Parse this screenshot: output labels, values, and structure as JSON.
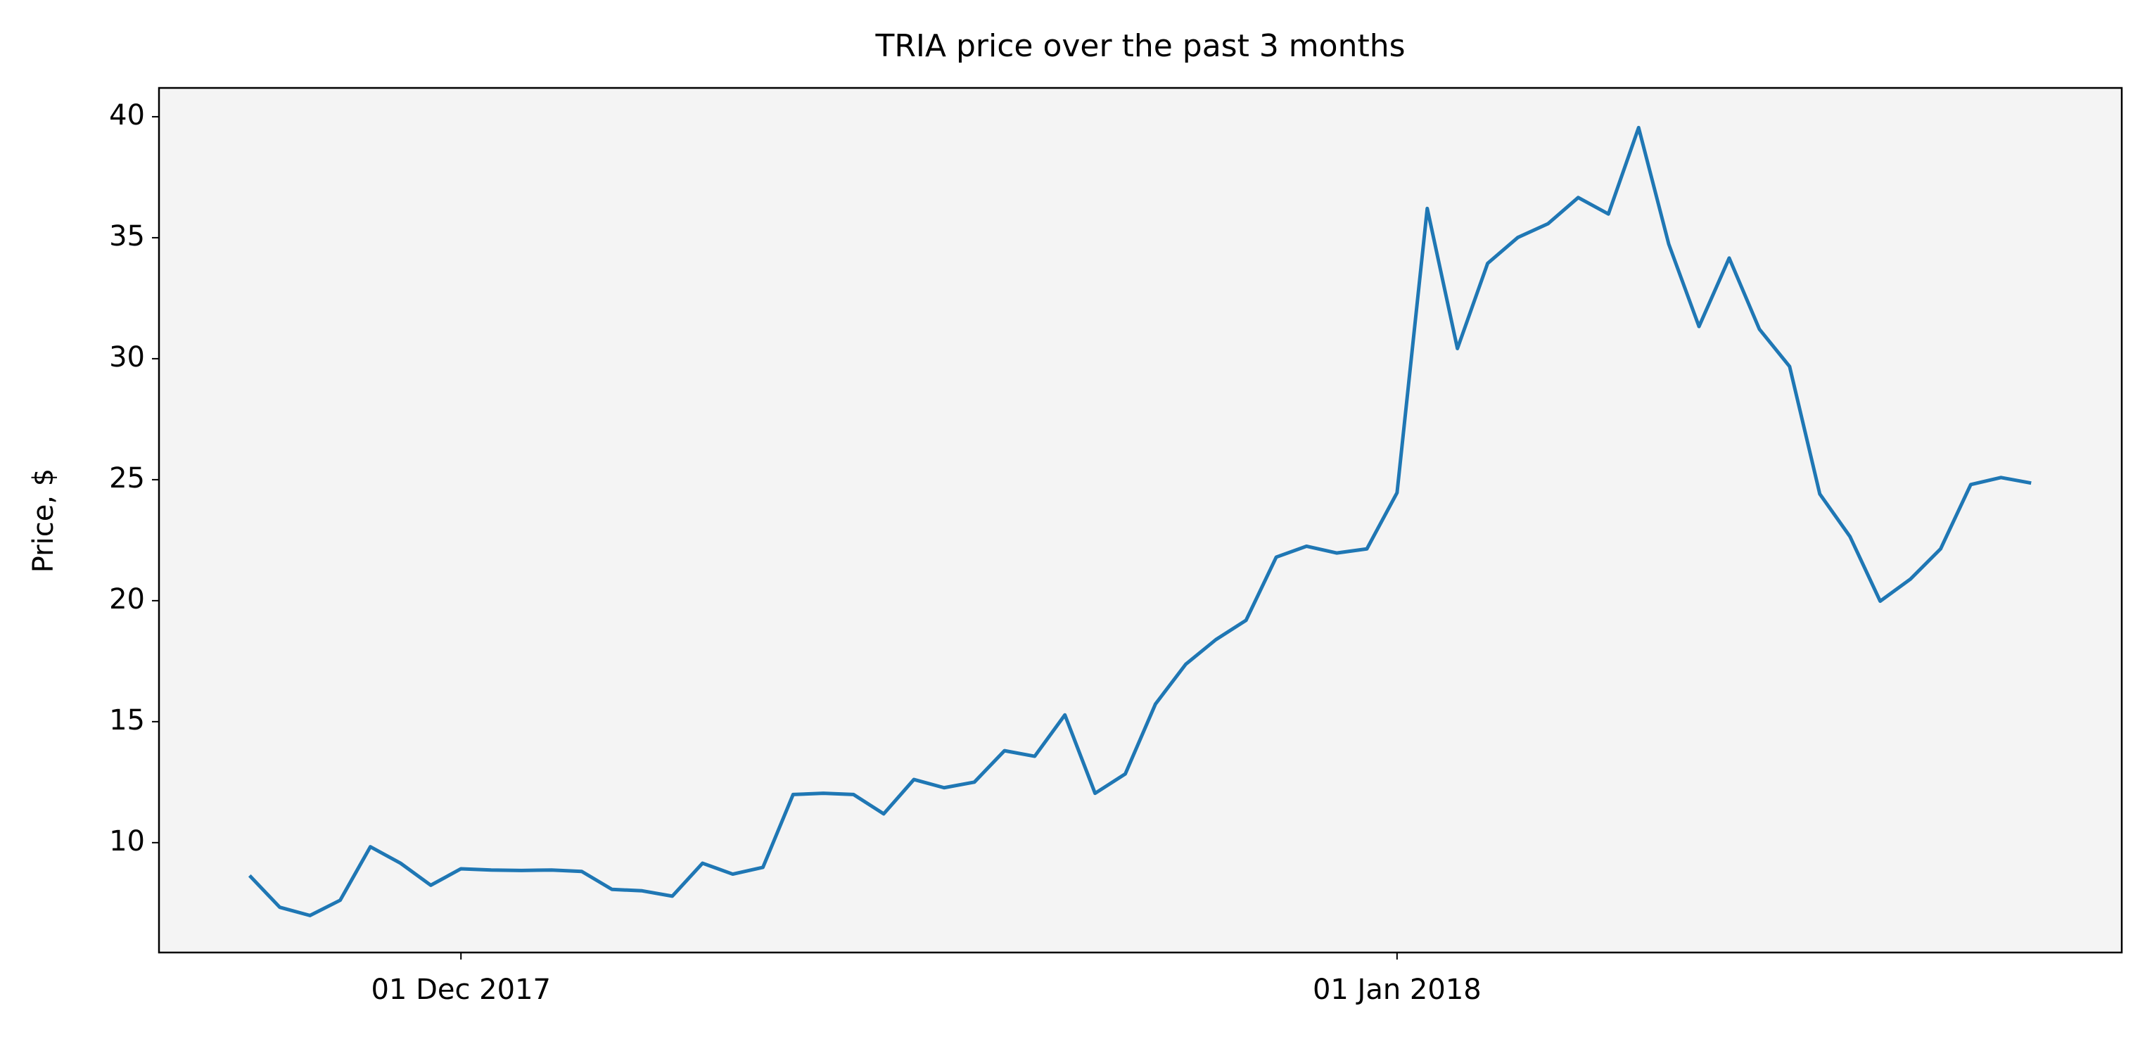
{
  "chart_data": {
    "type": "line",
    "title": "TRIA price over the past 3 months",
    "y_label": "Price, $",
    "x": [
      "2017-11-24",
      "2017-11-25",
      "2017-11-26",
      "2017-11-27",
      "2017-11-28",
      "2017-11-29",
      "2017-11-30",
      "2017-12-01",
      "2017-12-02",
      "2017-12-03",
      "2017-12-04",
      "2017-12-05",
      "2017-12-06",
      "2017-12-07",
      "2017-12-08",
      "2017-12-09",
      "2017-12-10",
      "2017-12-11",
      "2017-12-12",
      "2017-12-13",
      "2017-12-14",
      "2017-12-15",
      "2017-12-16",
      "2017-12-17",
      "2017-12-18",
      "2017-12-19",
      "2017-12-20",
      "2017-12-21",
      "2017-12-22",
      "2017-12-23",
      "2017-12-24",
      "2017-12-25",
      "2017-12-26",
      "2017-12-27",
      "2017-12-28",
      "2017-12-29",
      "2017-12-30",
      "2017-12-31",
      "2018-01-01",
      "2018-01-02",
      "2018-01-03",
      "2018-01-04",
      "2018-01-05",
      "2018-01-06",
      "2018-01-07",
      "2018-01-08",
      "2018-01-09",
      "2018-01-10",
      "2018-01-11",
      "2018-01-12",
      "2018-01-13",
      "2018-01-14",
      "2018-01-15",
      "2018-01-16",
      "2018-01-17",
      "2018-01-18",
      "2018-01-19",
      "2018-01-20",
      "2018-01-21",
      "2018-01-22"
    ],
    "series": [
      {
        "color": "#1f77b4",
        "values": [
          8.64,
          7.33,
          6.99,
          7.62,
          9.83,
          9.15,
          8.24,
          8.92,
          8.87,
          8.85,
          8.87,
          8.81,
          8.07,
          8.01,
          7.79,
          9.15,
          8.7,
          8.98,
          11.99,
          12.04,
          11.99,
          11.19,
          12.61,
          12.27,
          12.5,
          13.8,
          13.57,
          15.28,
          12.04,
          12.84,
          15.73,
          17.37,
          18.39,
          19.19,
          21.8,
          22.25,
          21.97,
          22.14,
          24.46,
          36.21,
          30.42,
          33.94,
          35.01,
          35.58,
          36.66,
          35.98,
          39.55,
          34.73,
          31.33,
          34.16,
          31.22,
          29.68,
          24.41,
          22.65,
          19.98,
          20.89,
          22.14,
          24.8,
          25.09,
          24.86
        ]
      }
    ],
    "xlim": [
      "2017-11-21",
      "2018-01-25"
    ],
    "xticks": [
      {
        "value": "2017-12-01",
        "label": "01 Dec 2017"
      },
      {
        "value": "2018-01-01",
        "label": "01 Jan 2018"
      }
    ],
    "ylim": [
      5.46,
      41.19
    ],
    "yticks": [
      10,
      15,
      20,
      25,
      30,
      35,
      40
    ],
    "background": "#f4f4f4"
  }
}
